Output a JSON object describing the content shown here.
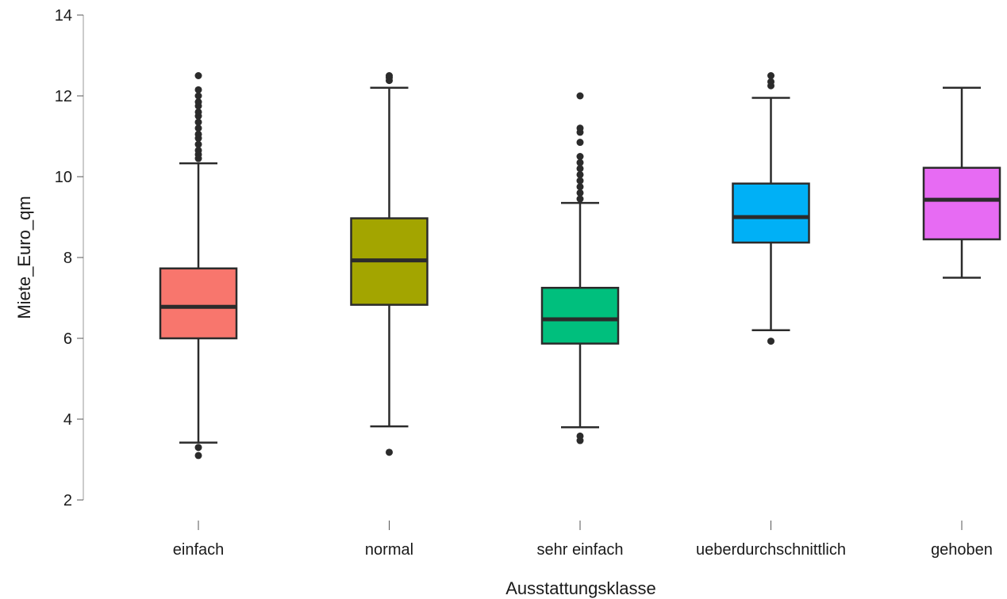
{
  "chart_data": {
    "type": "box",
    "xlabel": "Ausstattungsklasse",
    "ylabel": "Miete_Euro_qm",
    "ylim": [
      2,
      14
    ],
    "yticks": [
      2,
      4,
      6,
      8,
      10,
      12,
      14
    ],
    "grid": false,
    "categories": [
      "einfach",
      "normal",
      "sehr einfach",
      "ueberdurchschnittlich",
      "gehoben"
    ],
    "colors": [
      "#F8766D",
      "#A3A500",
      "#00BF7D",
      "#00B0F6",
      "#E76BF3"
    ],
    "boxes": [
      {
        "category": "einfach",
        "whisker_low": 3.42,
        "q1": 6.0,
        "median": 6.78,
        "q3": 7.73,
        "whisker_high": 10.33,
        "outliers": [
          3.3,
          3.1,
          10.45,
          10.55,
          10.65,
          10.8,
          10.95,
          11.05,
          11.2,
          11.35,
          11.5,
          11.6,
          11.75,
          11.85,
          12.0,
          12.15,
          12.5
        ]
      },
      {
        "category": "normal",
        "whisker_low": 3.82,
        "q1": 6.83,
        "median": 7.93,
        "q3": 8.97,
        "whisker_high": 12.2,
        "outliers": [
          3.18,
          12.38,
          12.45,
          12.5
        ]
      },
      {
        "category": "sehr einfach",
        "whisker_low": 3.8,
        "q1": 5.87,
        "median": 6.47,
        "q3": 7.25,
        "whisker_high": 9.35,
        "outliers": [
          3.58,
          3.47,
          9.45,
          9.6,
          9.75,
          9.9,
          10.05,
          10.2,
          10.35,
          10.5,
          10.85,
          11.1,
          11.2,
          12.0
        ]
      },
      {
        "category": "ueberdurchschnittlich",
        "whisker_low": 6.2,
        "q1": 8.37,
        "median": 9.0,
        "q3": 9.83,
        "whisker_high": 11.95,
        "outliers": [
          5.93,
          12.25,
          12.35,
          12.5
        ]
      },
      {
        "category": "gehoben",
        "whisker_low": 7.5,
        "q1": 8.45,
        "median": 9.43,
        "q3": 10.22,
        "whisker_high": 12.2,
        "outliers": []
      }
    ]
  }
}
